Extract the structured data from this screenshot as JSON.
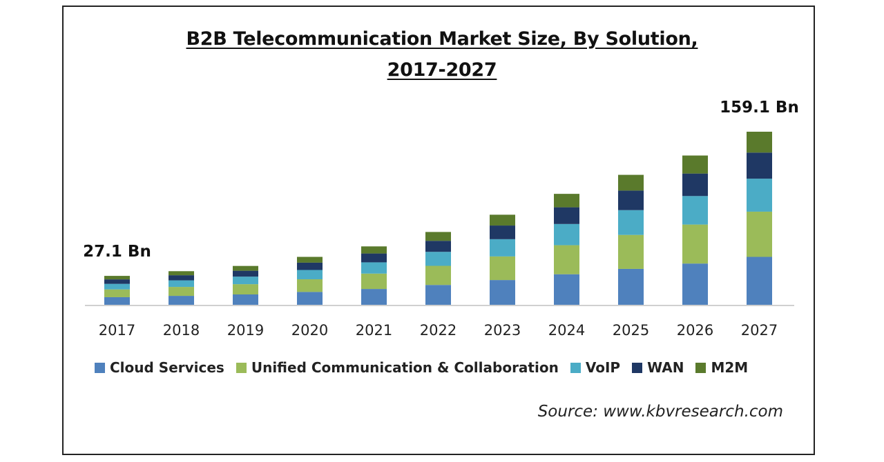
{
  "chart_data": {
    "type": "bar",
    "stacked": true,
    "title_line1": "B2B Telecommunication Market Size, By Solution,",
    "title_line2": "2017-2027",
    "categories": [
      "2017",
      "2018",
      "2019",
      "2020",
      "2021",
      "2022",
      "2023",
      "2024",
      "2025",
      "2026",
      "2027"
    ],
    "totals": [
      27.1,
      31.4,
      36.2,
      44.5,
      54.1,
      67.3,
      83.1,
      102.2,
      119.6,
      137.3,
      159.1
    ],
    "series": [
      {
        "name": "Cloud Services",
        "color": "#4f81bd",
        "values": [
          7.6,
          8.8,
          10.1,
          12.4,
          15.1,
          18.8,
          23.3,
          28.6,
          33.5,
          38.4,
          44.5
        ]
      },
      {
        "name": "Unified Communication & Collaboration",
        "color": "#9bbb59",
        "values": [
          7.1,
          8.2,
          9.4,
          11.6,
          14.1,
          17.5,
          21.6,
          26.6,
          31.1,
          35.7,
          41.4
        ]
      },
      {
        "name": "VoIP",
        "color": "#4bacc6",
        "values": [
          5.1,
          6.0,
          6.9,
          8.5,
          10.3,
          12.8,
          15.8,
          19.4,
          22.7,
          26.1,
          30.2
        ]
      },
      {
        "name": "WAN",
        "color": "#1f3864",
        "values": [
          4.1,
          4.7,
          5.4,
          6.7,
          8.1,
          10.1,
          12.5,
          15.3,
          17.9,
          20.6,
          23.9
        ]
      },
      {
        "name": "M2M",
        "color": "#5a7a2c",
        "values": [
          3.2,
          3.7,
          4.4,
          5.3,
          6.5,
          8.1,
          9.9,
          12.3,
          14.4,
          16.5,
          19.1
        ]
      }
    ],
    "annotations": [
      {
        "category": "2017",
        "text": "27.1 Bn"
      },
      {
        "category": "2027",
        "text": "159.1 Bn"
      }
    ],
    "ylim": [
      0,
      180
    ],
    "grid": false,
    "legend_position": "bottom"
  },
  "source": "Source: www.kbvresearch.com"
}
